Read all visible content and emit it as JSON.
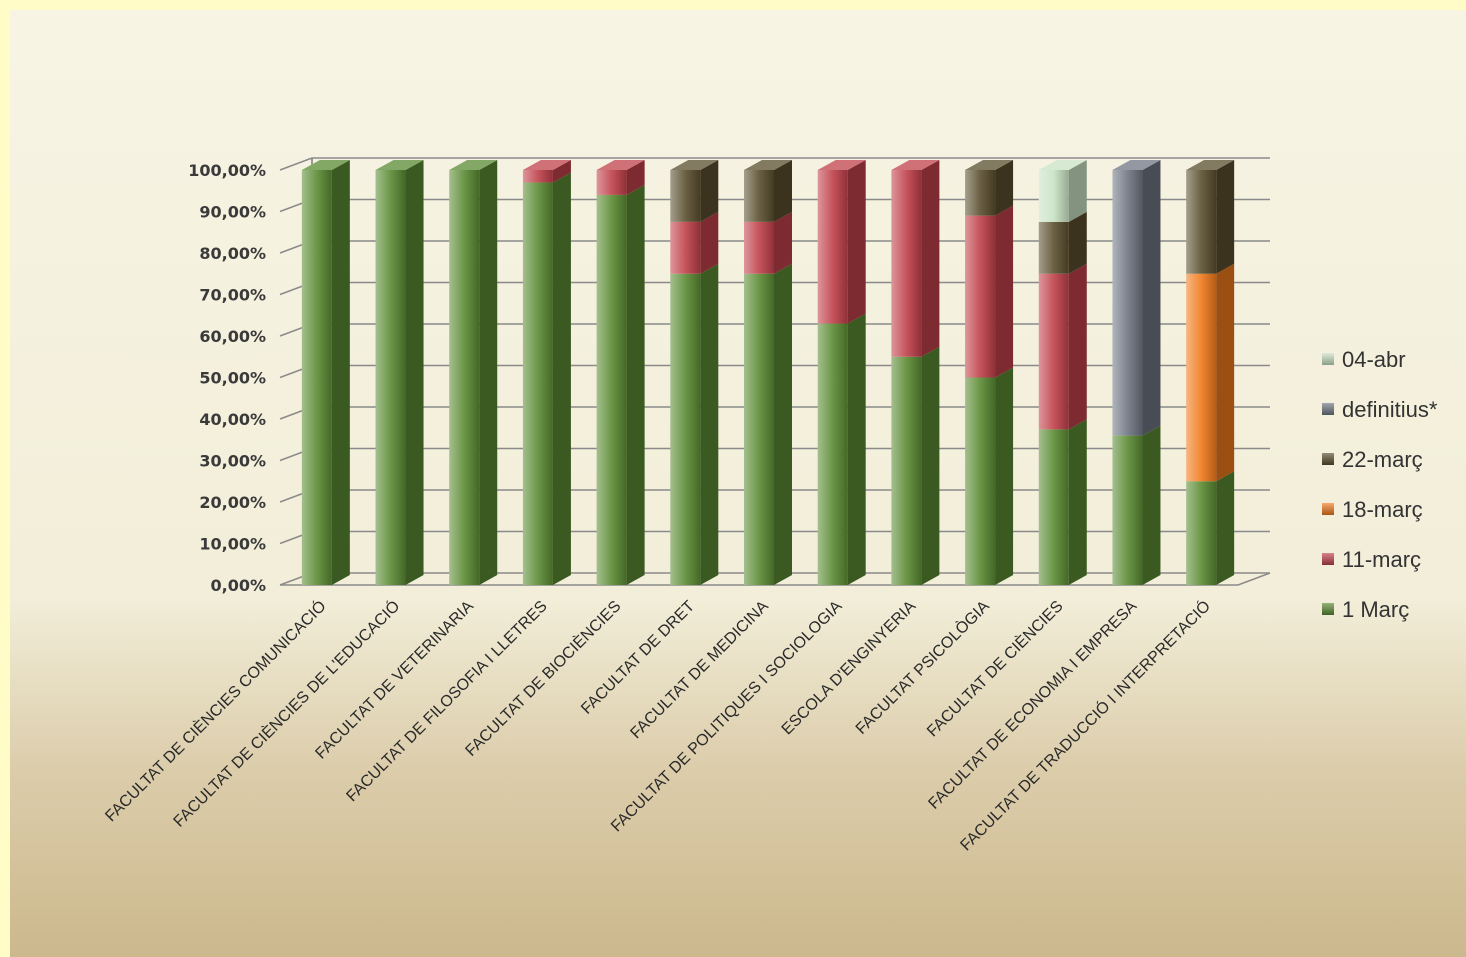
{
  "chart_data": {
    "type": "bar",
    "stacked": true,
    "three_d": true,
    "ylim": [
      0,
      100
    ],
    "y_ticks": [
      "0,00%",
      "10,00%",
      "20,00%",
      "30,00%",
      "40,00%",
      "50,00%",
      "60,00%",
      "70,00%",
      "80,00%",
      "90,00%",
      "100,00%"
    ],
    "grid": true,
    "legend_position": "right",
    "categories": [
      "FACULTAT DE CIÈNCIES COMUNICACIÓ",
      "FACULTAT DE CIÈNCIES DE L'EDUCACIÓ",
      "FACULTAT DE VETERINARIA",
      "FACULTAT DE FILOSOFIA I LLETRES",
      "FACULTAT DE BIOCIÈNCIES",
      "FACULTAT DE DRET",
      "FACULTAT DE MEDICINA",
      "FACULTAT DE POLITIQUES I SOCIOLOGIA",
      "ESCOLA D'ENGINYERIA",
      "FACULTAT PSICOLÒGIA",
      "FACULTAT DE CIÈNCIES",
      "FACULTAT DE ECONOMIA I EMPRESA",
      "FACULTAT DE TRADUCCIÓ I INTERPRETACIÓ"
    ],
    "series": [
      {
        "name": "1 Març",
        "color": "#5a8a32",
        "values": [
          100,
          100,
          100,
          97,
          94,
          75,
          75,
          63,
          55,
          50,
          37.5,
          36,
          25
        ]
      },
      {
        "name": "11-març",
        "color": "#c0404a",
        "values": [
          0,
          0,
          0,
          3,
          6,
          12.5,
          12.5,
          37,
          45,
          39,
          37.5,
          0,
          0
        ]
      },
      {
        "name": "18-març",
        "color": "#f07a1c",
        "values": [
          0,
          0,
          0,
          0,
          0,
          0,
          0,
          0,
          0,
          0,
          0,
          0,
          50
        ]
      },
      {
        "name": "22-març",
        "color": "#5a4e2e",
        "values": [
          0,
          0,
          0,
          0,
          0,
          12.5,
          12.5,
          0,
          0,
          11,
          12.5,
          0,
          25
        ]
      },
      {
        "name": "definitius*",
        "color": "#6f7683",
        "values": [
          0,
          0,
          0,
          0,
          0,
          0,
          0,
          0,
          0,
          0,
          0,
          64,
          0
        ]
      },
      {
        "name": "04-abr",
        "color": "#c9e2c4",
        "values": [
          0,
          0,
          0,
          0,
          0,
          0,
          0,
          0,
          0,
          0,
          12.5,
          0,
          0
        ]
      }
    ]
  }
}
